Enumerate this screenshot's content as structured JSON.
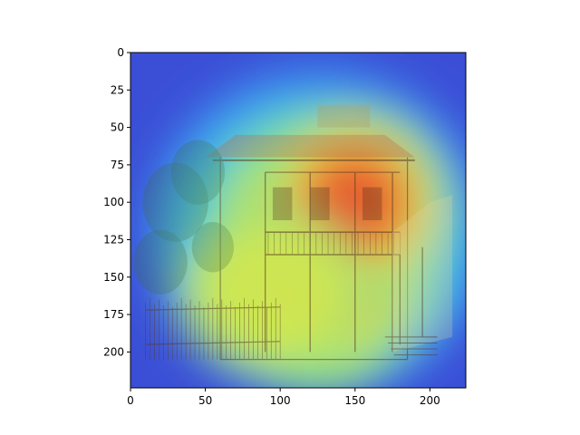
{
  "chart_data": {
    "type": "heatmap",
    "title": "",
    "xlabel": "",
    "ylabel": "",
    "xlim": [
      0,
      224
    ],
    "ylim": [
      224,
      0
    ],
    "grid": false,
    "colormap": "jet",
    "overlay": "heatmap blended over a sketch of an old two-storey house with a carved-wood balcony, tiled roof and trees on the left",
    "x_ticks": [
      0,
      50,
      100,
      150,
      200
    ],
    "y_ticks": [
      0,
      25,
      50,
      75,
      100,
      125,
      150,
      175,
      200
    ],
    "hotspots": [
      {
        "cx": 125,
        "cy": 135,
        "sx": 48,
        "sy": 58,
        "intensity": 1.0
      },
      {
        "cx": 150,
        "cy": 100,
        "sx": 40,
        "sy": 40,
        "intensity": 0.85
      },
      {
        "cx": 95,
        "cy": 160,
        "sx": 40,
        "sy": 35,
        "intensity": 0.55
      }
    ]
  }
}
